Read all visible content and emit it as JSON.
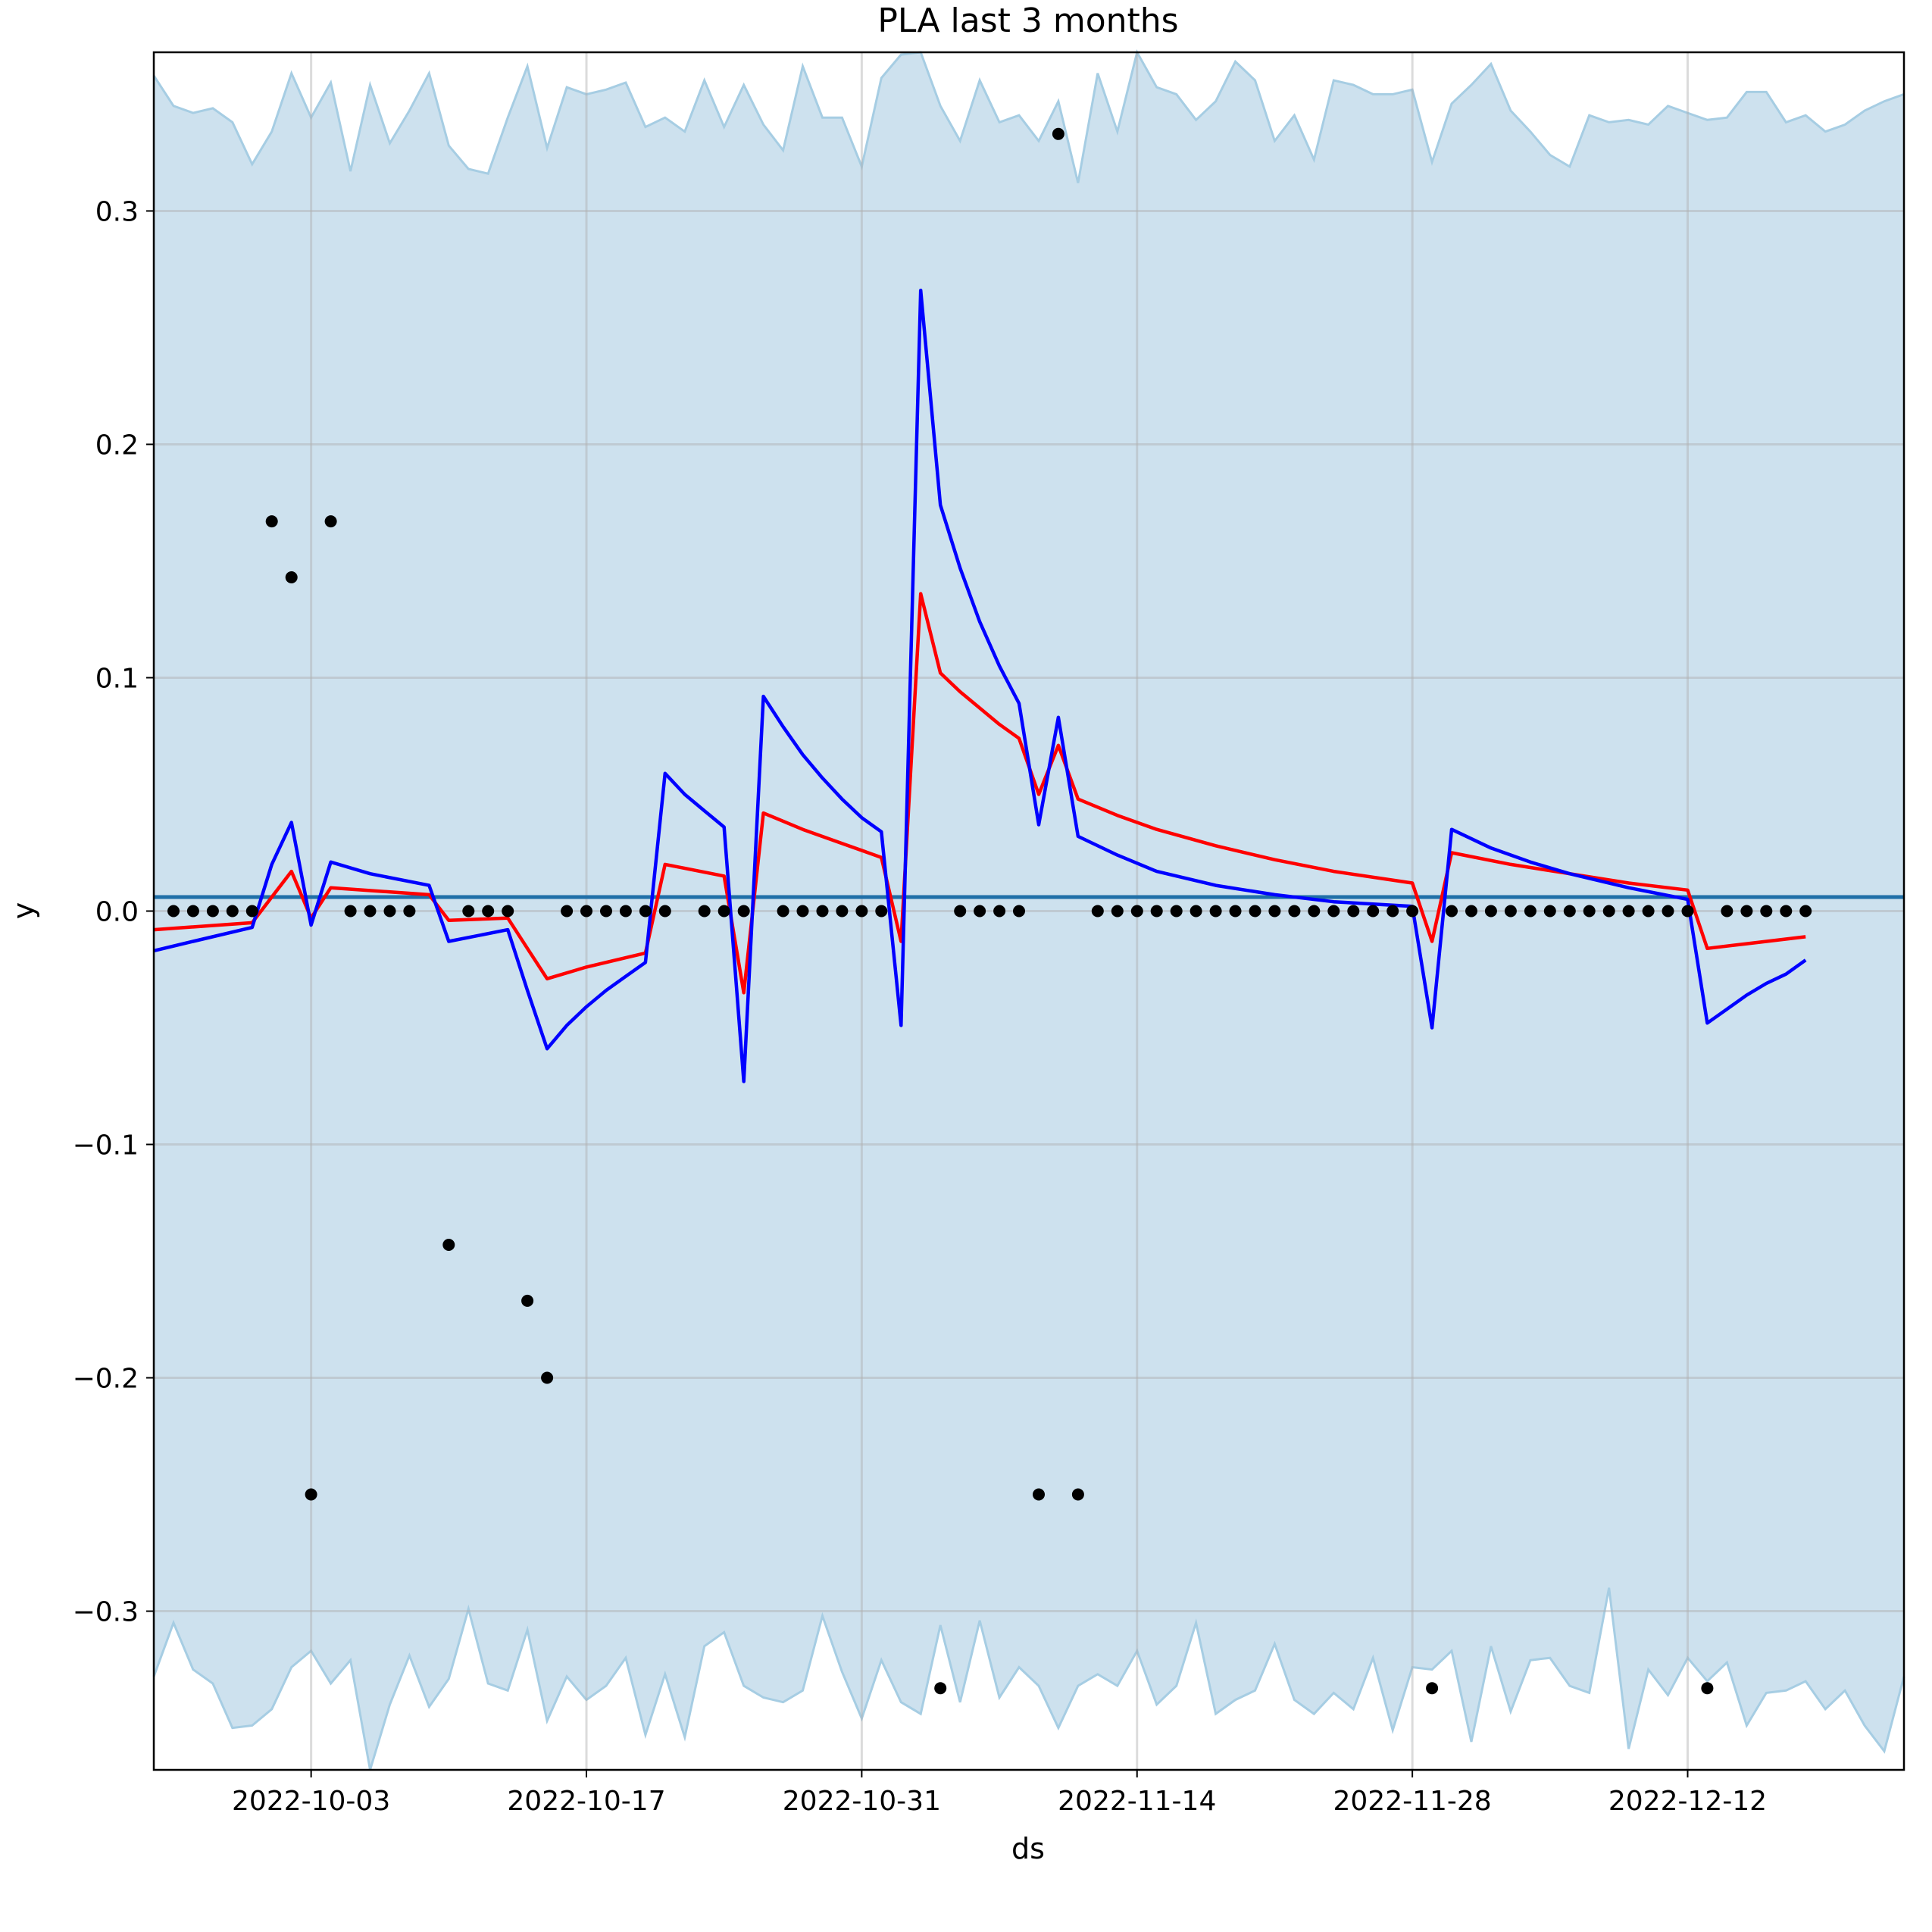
{
  "chart_data": {
    "type": "line",
    "title": "PLA last 3 months",
    "xlabel": "ds",
    "ylabel": "y",
    "xlim": [
      "2022-09-25",
      "2022-12-23"
    ],
    "ylim": [
      -0.368,
      0.368
    ],
    "grid": true,
    "x_tick_labels": [
      "2022-10-03",
      "2022-10-17",
      "2022-10-31",
      "2022-11-14",
      "2022-11-28",
      "2022-12-12"
    ],
    "y_tick_labels": [
      "−0.3",
      "−0.2",
      "−0.1",
      "0.0",
      "0.1",
      "0.2",
      "0.3"
    ],
    "y_tick_values": [
      -0.3,
      -0.2,
      -0.1,
      0.0,
      0.1,
      0.2,
      0.3
    ],
    "colors": {
      "band_fill": "#cde1ee",
      "band_edge": "#a6cde3",
      "trend": "#1f6fa8",
      "red_series": "#ff0000",
      "blue_series": "#0000ff",
      "points": "#000000",
      "grid": "#b0b0b0"
    },
    "observed": [
      [
        "2022-09-26",
        0
      ],
      [
        "2022-09-27",
        0
      ],
      [
        "2022-09-28",
        0
      ],
      [
        "2022-09-29",
        0
      ],
      [
        "2022-09-30",
        0
      ],
      [
        "2022-10-01",
        0.167
      ],
      [
        "2022-10-02",
        0.143
      ],
      [
        "2022-10-03",
        -0.25
      ],
      [
        "2022-10-04",
        0.167
      ],
      [
        "2022-10-05",
        0
      ],
      [
        "2022-10-06",
        0
      ],
      [
        "2022-10-07",
        0
      ],
      [
        "2022-10-08",
        0
      ],
      [
        "2022-10-10",
        -0.143
      ],
      [
        "2022-10-11",
        0
      ],
      [
        "2022-10-12",
        0
      ],
      [
        "2022-10-13",
        0
      ],
      [
        "2022-10-14",
        -0.167
      ],
      [
        "2022-10-15",
        -0.2
      ],
      [
        "2022-10-16",
        0
      ],
      [
        "2022-10-17",
        0
      ],
      [
        "2022-10-18",
        0
      ],
      [
        "2022-10-19",
        0
      ],
      [
        "2022-10-20",
        0
      ],
      [
        "2022-10-21",
        0
      ],
      [
        "2022-10-23",
        0
      ],
      [
        "2022-10-24",
        0
      ],
      [
        "2022-10-25",
        0
      ],
      [
        "2022-10-27",
        0
      ],
      [
        "2022-10-28",
        0
      ],
      [
        "2022-10-29",
        0
      ],
      [
        "2022-10-30",
        0
      ],
      [
        "2022-10-31",
        0
      ],
      [
        "2022-11-01",
        0
      ],
      [
        "2022-11-04",
        -0.333
      ],
      [
        "2022-11-05",
        0
      ],
      [
        "2022-11-06",
        0
      ],
      [
        "2022-11-07",
        0
      ],
      [
        "2022-11-08",
        0
      ],
      [
        "2022-11-09",
        -0.25
      ],
      [
        "2022-11-10",
        0.333
      ],
      [
        "2022-11-11",
        -0.25
      ],
      [
        "2022-11-12",
        0
      ],
      [
        "2022-11-13",
        0
      ],
      [
        "2022-11-14",
        0
      ],
      [
        "2022-11-15",
        0
      ],
      [
        "2022-11-16",
        0
      ],
      [
        "2022-11-17",
        0
      ],
      [
        "2022-11-18",
        0
      ],
      [
        "2022-11-19",
        0
      ],
      [
        "2022-11-20",
        0
      ],
      [
        "2022-11-21",
        0
      ],
      [
        "2022-11-22",
        0
      ],
      [
        "2022-11-23",
        0
      ],
      [
        "2022-11-24",
        0
      ],
      [
        "2022-11-25",
        0
      ],
      [
        "2022-11-26",
        0
      ],
      [
        "2022-11-27",
        0
      ],
      [
        "2022-11-28",
        0
      ],
      [
        "2022-11-29",
        -0.333
      ],
      [
        "2022-11-30",
        0
      ],
      [
        "2022-12-01",
        0
      ],
      [
        "2022-12-02",
        0
      ],
      [
        "2022-12-03",
        0
      ],
      [
        "2022-12-04",
        0
      ],
      [
        "2022-12-05",
        0
      ],
      [
        "2022-12-06",
        0
      ],
      [
        "2022-12-07",
        0
      ],
      [
        "2022-12-08",
        0
      ],
      [
        "2022-12-09",
        0
      ],
      [
        "2022-12-10",
        0
      ],
      [
        "2022-12-11",
        0
      ],
      [
        "2022-12-12",
        0
      ],
      [
        "2022-12-13",
        -0.333
      ],
      [
        "2022-12-14",
        0
      ],
      [
        "2022-12-15",
        0
      ],
      [
        "2022-12-16",
        0
      ],
      [
        "2022-12-17",
        0
      ],
      [
        "2022-12-18",
        0
      ]
    ],
    "trend": [
      [
        "2022-09-25",
        0.006
      ],
      [
        "2022-12-23",
        0.006
      ]
    ],
    "red_series": [
      [
        "2022-09-25",
        -0.008
      ],
      [
        "2022-09-30",
        -0.005
      ],
      [
        "2022-10-01",
        0.006
      ],
      [
        "2022-10-02",
        0.017
      ],
      [
        "2022-10-03",
        -0.003
      ],
      [
        "2022-10-04",
        0.01
      ],
      [
        "2022-10-09",
        0.007
      ],
      [
        "2022-10-10",
        -0.004
      ],
      [
        "2022-10-13",
        -0.003
      ],
      [
        "2022-10-14",
        -0.016
      ],
      [
        "2022-10-15",
        -0.029
      ],
      [
        "2022-10-17",
        -0.024
      ],
      [
        "2022-10-19",
        -0.02
      ],
      [
        "2022-10-20",
        -0.018
      ],
      [
        "2022-10-21",
        0.02
      ],
      [
        "2022-10-24",
        0.015
      ],
      [
        "2022-10-25",
        -0.035
      ],
      [
        "2022-10-26",
        0.042
      ],
      [
        "2022-10-28",
        0.035
      ],
      [
        "2022-10-30",
        0.029
      ],
      [
        "2022-11-01",
        0.023
      ],
      [
        "2022-11-02",
        -0.013
      ],
      [
        "2022-11-03",
        0.136
      ],
      [
        "2022-11-04",
        0.102
      ],
      [
        "2022-11-05",
        0.094
      ],
      [
        "2022-11-06",
        0.087
      ],
      [
        "2022-11-07",
        0.08
      ],
      [
        "2022-11-08",
        0.074
      ],
      [
        "2022-11-09",
        0.05
      ],
      [
        "2022-11-10",
        0.071
      ],
      [
        "2022-11-11",
        0.048
      ],
      [
        "2022-11-13",
        0.041
      ],
      [
        "2022-11-15",
        0.035
      ],
      [
        "2022-11-18",
        0.028
      ],
      [
        "2022-11-21",
        0.022
      ],
      [
        "2022-11-24",
        0.017
      ],
      [
        "2022-11-28",
        0.012
      ],
      [
        "2022-11-29",
        -0.013
      ],
      [
        "2022-11-30",
        0.025
      ],
      [
        "2022-12-03",
        0.02
      ],
      [
        "2022-12-06",
        0.016
      ],
      [
        "2022-12-09",
        0.012
      ],
      [
        "2022-12-12",
        0.009
      ],
      [
        "2022-12-13",
        -0.016
      ],
      [
        "2022-12-15",
        -0.014
      ],
      [
        "2022-12-18",
        -0.011
      ]
    ],
    "blue_series": [
      [
        "2022-09-25",
        -0.017
      ],
      [
        "2022-09-27",
        -0.013
      ],
      [
        "2022-09-30",
        -0.007
      ],
      [
        "2022-10-01",
        0.02
      ],
      [
        "2022-10-02",
        0.038
      ],
      [
        "2022-10-03",
        -0.006
      ],
      [
        "2022-10-04",
        0.021
      ],
      [
        "2022-10-06",
        0.016
      ],
      [
        "2022-10-09",
        0.011
      ],
      [
        "2022-10-10",
        -0.013
      ],
      [
        "2022-10-13",
        -0.008
      ],
      [
        "2022-10-14",
        -0.034
      ],
      [
        "2022-10-15",
        -0.059
      ],
      [
        "2022-10-16",
        -0.049
      ],
      [
        "2022-10-17",
        -0.041
      ],
      [
        "2022-10-18",
        -0.034
      ],
      [
        "2022-10-19",
        -0.028
      ],
      [
        "2022-10-20",
        -0.022
      ],
      [
        "2022-10-21",
        0.059
      ],
      [
        "2022-10-22",
        0.05
      ],
      [
        "2022-10-23",
        0.043
      ],
      [
        "2022-10-24",
        0.036
      ],
      [
        "2022-10-25",
        -0.073
      ],
      [
        "2022-10-26",
        0.092
      ],
      [
        "2022-10-27",
        0.079
      ],
      [
        "2022-10-28",
        0.067
      ],
      [
        "2022-10-29",
        0.057
      ],
      [
        "2022-10-30",
        0.048
      ],
      [
        "2022-10-31",
        0.04
      ],
      [
        "2022-11-01",
        0.034
      ],
      [
        "2022-11-02",
        -0.049
      ],
      [
        "2022-11-03",
        0.266
      ],
      [
        "2022-11-04",
        0.174
      ],
      [
        "2022-11-05",
        0.147
      ],
      [
        "2022-11-06",
        0.124
      ],
      [
        "2022-11-07",
        0.105
      ],
      [
        "2022-11-08",
        0.089
      ],
      [
        "2022-11-09",
        0.037
      ],
      [
        "2022-11-10",
        0.083
      ],
      [
        "2022-11-11",
        0.032
      ],
      [
        "2022-11-13",
        0.024
      ],
      [
        "2022-11-15",
        0.017
      ],
      [
        "2022-11-18",
        0.011
      ],
      [
        "2022-11-21",
        0.007
      ],
      [
        "2022-11-24",
        0.004
      ],
      [
        "2022-11-28",
        0.002
      ],
      [
        "2022-11-29",
        -0.05
      ],
      [
        "2022-11-30",
        0.035
      ],
      [
        "2022-12-02",
        0.027
      ],
      [
        "2022-12-04",
        0.021
      ],
      [
        "2022-12-06",
        0.016
      ],
      [
        "2022-12-09",
        0.01
      ],
      [
        "2022-12-12",
        0.005
      ],
      [
        "2022-12-13",
        -0.048
      ],
      [
        "2022-12-14",
        -0.042
      ],
      [
        "2022-12-15",
        -0.036
      ],
      [
        "2022-12-16",
        -0.031
      ],
      [
        "2022-12-17",
        -0.027
      ],
      [
        "2022-12-18",
        -0.021
      ]
    ],
    "band_upper": [
      0.358,
      0.345,
      0.342,
      0.344,
      0.338,
      0.32,
      0.334,
      0.359,
      0.34,
      0.355,
      0.317,
      0.354,
      0.329,
      0.343,
      0.359,
      0.328,
      0.318,
      0.316,
      0.34,
      0.362,
      0.327,
      0.353,
      0.35,
      0.352,
      0.355,
      0.336,
      0.34,
      0.334,
      0.356,
      0.336,
      0.354,
      0.337,
      0.326,
      0.362,
      0.34,
      0.34,
      0.319,
      0.357,
      0.367,
      0.368,
      0.345,
      0.33,
      0.356,
      0.338,
      0.341,
      0.33,
      0.347,
      0.312,
      0.359,
      0.334,
      0.368,
      0.353,
      0.35,
      0.339,
      0.347,
      0.364,
      0.356,
      0.33,
      0.341,
      0.322,
      0.356,
      0.354,
      0.35,
      0.35,
      0.352,
      0.321,
      0.346,
      0.354,
      0.363,
      0.343,
      0.334,
      0.324,
      0.319,
      0.341,
      0.338,
      0.339,
      0.337,
      0.345,
      0.342,
      0.339,
      0.34,
      0.351,
      0.351,
      0.338,
      0.341,
      0.334,
      0.337,
      0.343,
      0.347,
      0.35
    ],
    "band_lower": [
      -0.328,
      -0.305,
      -0.325,
      -0.331,
      -0.35,
      -0.349,
      -0.342,
      -0.324,
      -0.317,
      -0.331,
      -0.321,
      -0.368,
      -0.34,
      -0.319,
      -0.341,
      -0.329,
      -0.299,
      -0.331,
      -0.334,
      -0.308,
      -0.347,
      -0.328,
      -0.338,
      -0.332,
      -0.32,
      -0.353,
      -0.327,
      -0.354,
      -0.315,
      -0.309,
      -0.332,
      -0.337,
      -0.339,
      -0.334,
      -0.302,
      -0.326,
      -0.346,
      -0.321,
      -0.339,
      -0.344,
      -0.306,
      -0.339,
      -0.304,
      -0.337,
      -0.324,
      -0.332,
      -0.35,
      -0.332,
      -0.327,
      -0.332,
      -0.317,
      -0.34,
      -0.332,
      -0.305,
      -0.344,
      -0.338,
      -0.334,
      -0.314,
      -0.338,
      -0.344,
      -0.335,
      -0.342,
      -0.32,
      -0.351,
      -0.324,
      -0.325,
      -0.317,
      -0.356,
      -0.315,
      -0.343,
      -0.321,
      -0.32,
      -0.332,
      -0.335,
      -0.29,
      -0.359,
      -0.325,
      -0.336,
      -0.32,
      -0.33,
      -0.322,
      -0.349,
      -0.335,
      -0.334,
      -0.33,
      -0.342,
      -0.334,
      -0.349,
      -0.36,
      -0.328
    ]
  }
}
